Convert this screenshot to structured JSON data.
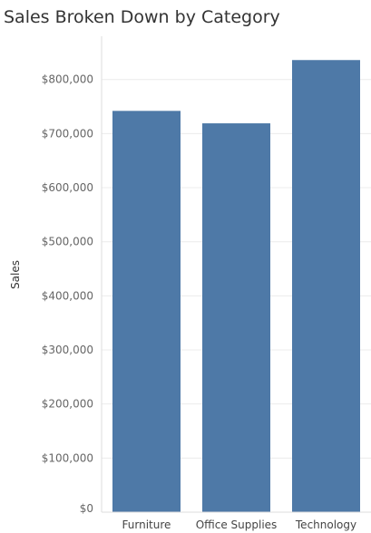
{
  "chart_data": {
    "type": "bar",
    "title": "Sales Broken Down by Category",
    "xlabel": "",
    "ylabel": "Sales",
    "categories": [
      "Furniture",
      "Office Supplies",
      "Technology"
    ],
    "values": [
      742000,
      719000,
      836000
    ],
    "ylim": [
      0,
      880000
    ],
    "yticks": [
      0,
      100000,
      200000,
      300000,
      400000,
      500000,
      600000,
      700000,
      800000
    ],
    "ytick_labels": [
      "$0",
      "$100,000",
      "$200,000",
      "$300,000",
      "$400,000",
      "$500,000",
      "$600,000",
      "$700,000",
      "$800,000"
    ],
    "grid": true,
    "legend": "none",
    "bar_color": "#4e79a7",
    "grid_color": "#ececec",
    "axis_line_color": "#dcdcdc"
  }
}
